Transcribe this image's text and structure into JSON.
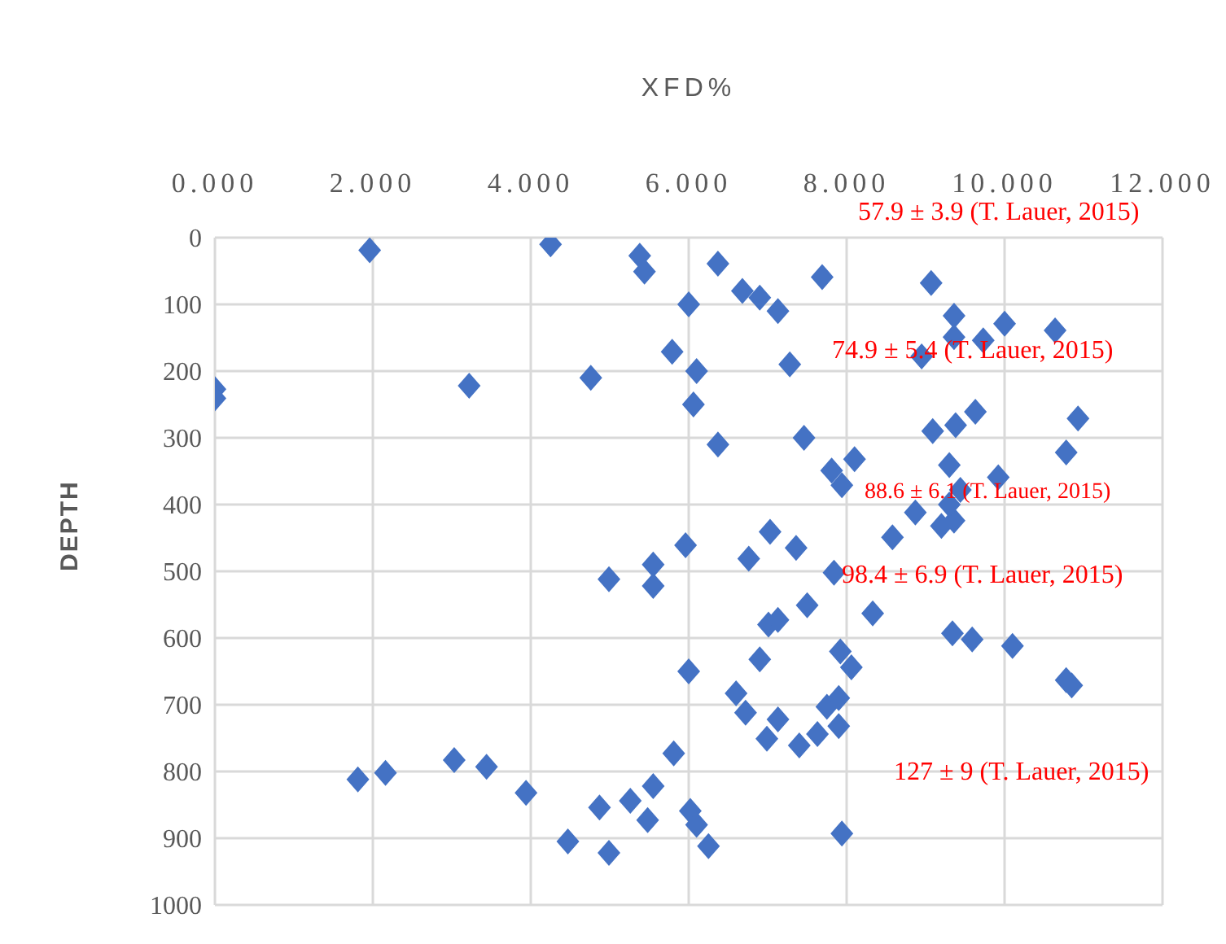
{
  "chart_data": {
    "type": "scatter",
    "xlabel": "XFD%",
    "ylabel": "DEPTH",
    "xlim": [
      0,
      12
    ],
    "xticks": [
      {
        "value": 0,
        "label": "0.000"
      },
      {
        "value": 2,
        "label": "2.000"
      },
      {
        "value": 4,
        "label": "4.000"
      },
      {
        "value": 6,
        "label": "6.000"
      },
      {
        "value": 8,
        "label": "8.000"
      },
      {
        "value": 10,
        "label": "10.000"
      },
      {
        "value": 12,
        "label": "12.000"
      }
    ],
    "ylim": [
      1000,
      0
    ],
    "yticks": [
      0,
      100,
      200,
      300,
      400,
      500,
      600,
      700,
      800,
      900,
      1000
    ],
    "grid": true,
    "marker": "diamond",
    "legend": false,
    "series": [
      {
        "color": "#4472c4",
        "x": [
          1.96,
          4.25,
          5.38,
          5.44,
          6.37,
          6.68,
          6.9,
          7.13,
          7.69,
          6.0,
          5.79,
          6.1,
          7.28,
          6.06,
          6.37,
          7.46,
          7.81,
          7.94,
          8.1,
          9.07,
          9.36,
          9.36,
          10.0,
          10.64,
          9.73,
          8.95,
          9.09,
          9.38,
          9.63,
          10.93,
          10.78,
          9.3,
          9.92,
          9.44,
          8.87,
          9.36,
          9.2,
          9.3,
          8.58,
          7.03,
          7.36,
          5.96,
          0,
          0,
          3.22,
          4.76,
          4.99,
          5.55,
          5.55,
          6.76,
          7.84,
          8.33,
          7.5,
          7.01,
          7.13,
          9.34,
          9.59,
          10.1,
          10.78,
          10.85,
          7.92,
          8.06,
          6.0,
          6.9,
          6.6,
          6.72,
          7.13,
          6.99,
          7.4,
          7.63,
          7.75,
          7.9,
          7.9,
          5.81,
          1.81,
          2.16,
          3.03,
          3.44,
          3.94,
          4.47,
          4.87,
          4.99,
          5.26,
          5.48,
          5.55,
          6.02,
          6.1,
          6.25,
          7.94
        ],
        "values": [
          19,
          10,
          27,
          51,
          39,
          80,
          90,
          110,
          59,
          100,
          171,
          200,
          190,
          250,
          310,
          300,
          349,
          371,
          332,
          68,
          117,
          149,
          129,
          139,
          154,
          178,
          290,
          281,
          261,
          271,
          322,
          341,
          359,
          378,
          412,
          424,
          432,
          400,
          449,
          441,
          465,
          461,
          227,
          241,
          222,
          210,
          512,
          490,
          522,
          481,
          502,
          563,
          551,
          580,
          573,
          593,
          602,
          612,
          663,
          671,
          620,
          644,
          650,
          632,
          683,
          712,
          722,
          751,
          761,
          744,
          703,
          690,
          732,
          773,
          812,
          802,
          783,
          793,
          832,
          905,
          854,
          922,
          844,
          873,
          822,
          859,
          880,
          912,
          893
        ]
      }
    ],
    "annotations": [
      "57.9 ± 3.9 (T. Lauer, 2015)",
      "74.9 ± 5.4 (T. Lauer, 2015)",
      "88.6 ± 6.1 (T. Lauer, 2015)",
      "98.4 ± 6.9 (T. Lauer, 2015)",
      "127 ± 9 (T. Lauer, 2015)"
    ]
  }
}
